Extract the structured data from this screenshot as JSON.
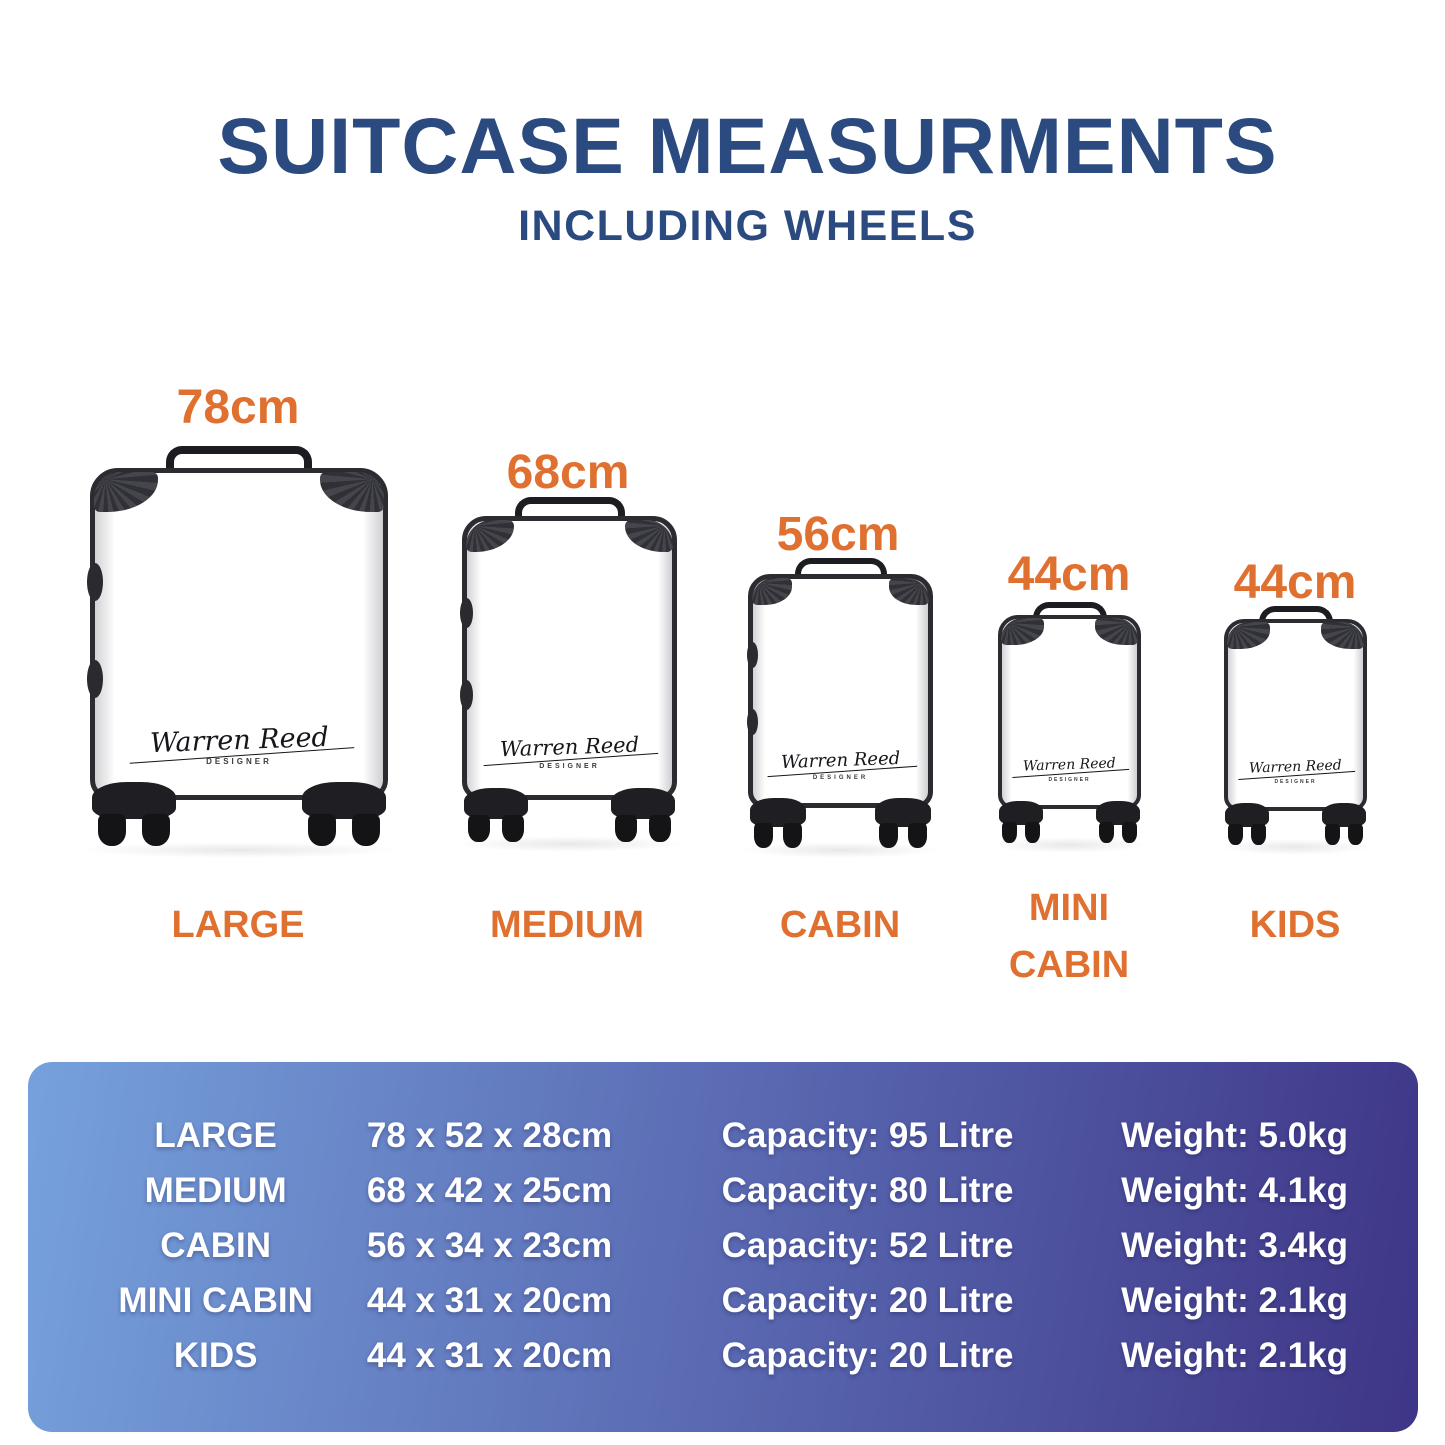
{
  "title": "SUITCASE MEASURMENTS",
  "subtitle": "INCLUDING WHEELS",
  "colors": {
    "heading_navy": "#2B4B80",
    "accent_orange": "#DF7030",
    "table_gradient_start": "#76A1DC",
    "table_gradient_end": "#3E3586",
    "table_text": "#FFFFFF"
  },
  "brand": {
    "signature": "Warren Reed",
    "signature_sub": "DESIGNER"
  },
  "suitcases": [
    {
      "name": "LARGE",
      "height_label": "78cm"
    },
    {
      "name": "MEDIUM",
      "height_label": "68cm"
    },
    {
      "name": "CABIN",
      "height_label": "56cm"
    },
    {
      "name": "MINI CABIN",
      "height_label": "44cm"
    },
    {
      "name": "KIDS",
      "height_label": "44cm"
    }
  ],
  "table": {
    "rows": [
      {
        "name": "LARGE",
        "dimensions": "78 x 52 x 28cm",
        "capacity": "Capacity: 95 Litre",
        "weight": "Weight: 5.0kg"
      },
      {
        "name": "MEDIUM",
        "dimensions": "68 x 42 x 25cm",
        "capacity": "Capacity: 80 Litre",
        "weight": "Weight: 4.1kg"
      },
      {
        "name": "CABIN",
        "dimensions": "56 x 34 x 23cm",
        "capacity": "Capacity: 52 Litre",
        "weight": "Weight: 3.4kg"
      },
      {
        "name": "MINI CABIN",
        "dimensions": "44 x 31 x 20cm",
        "capacity": "Capacity: 20 Litre",
        "weight": "Weight: 2.1kg"
      },
      {
        "name": "KIDS",
        "dimensions": "44 x 31 x 20cm",
        "capacity": "Capacity: 20 Litre",
        "weight": "Weight: 2.1kg"
      }
    ]
  }
}
